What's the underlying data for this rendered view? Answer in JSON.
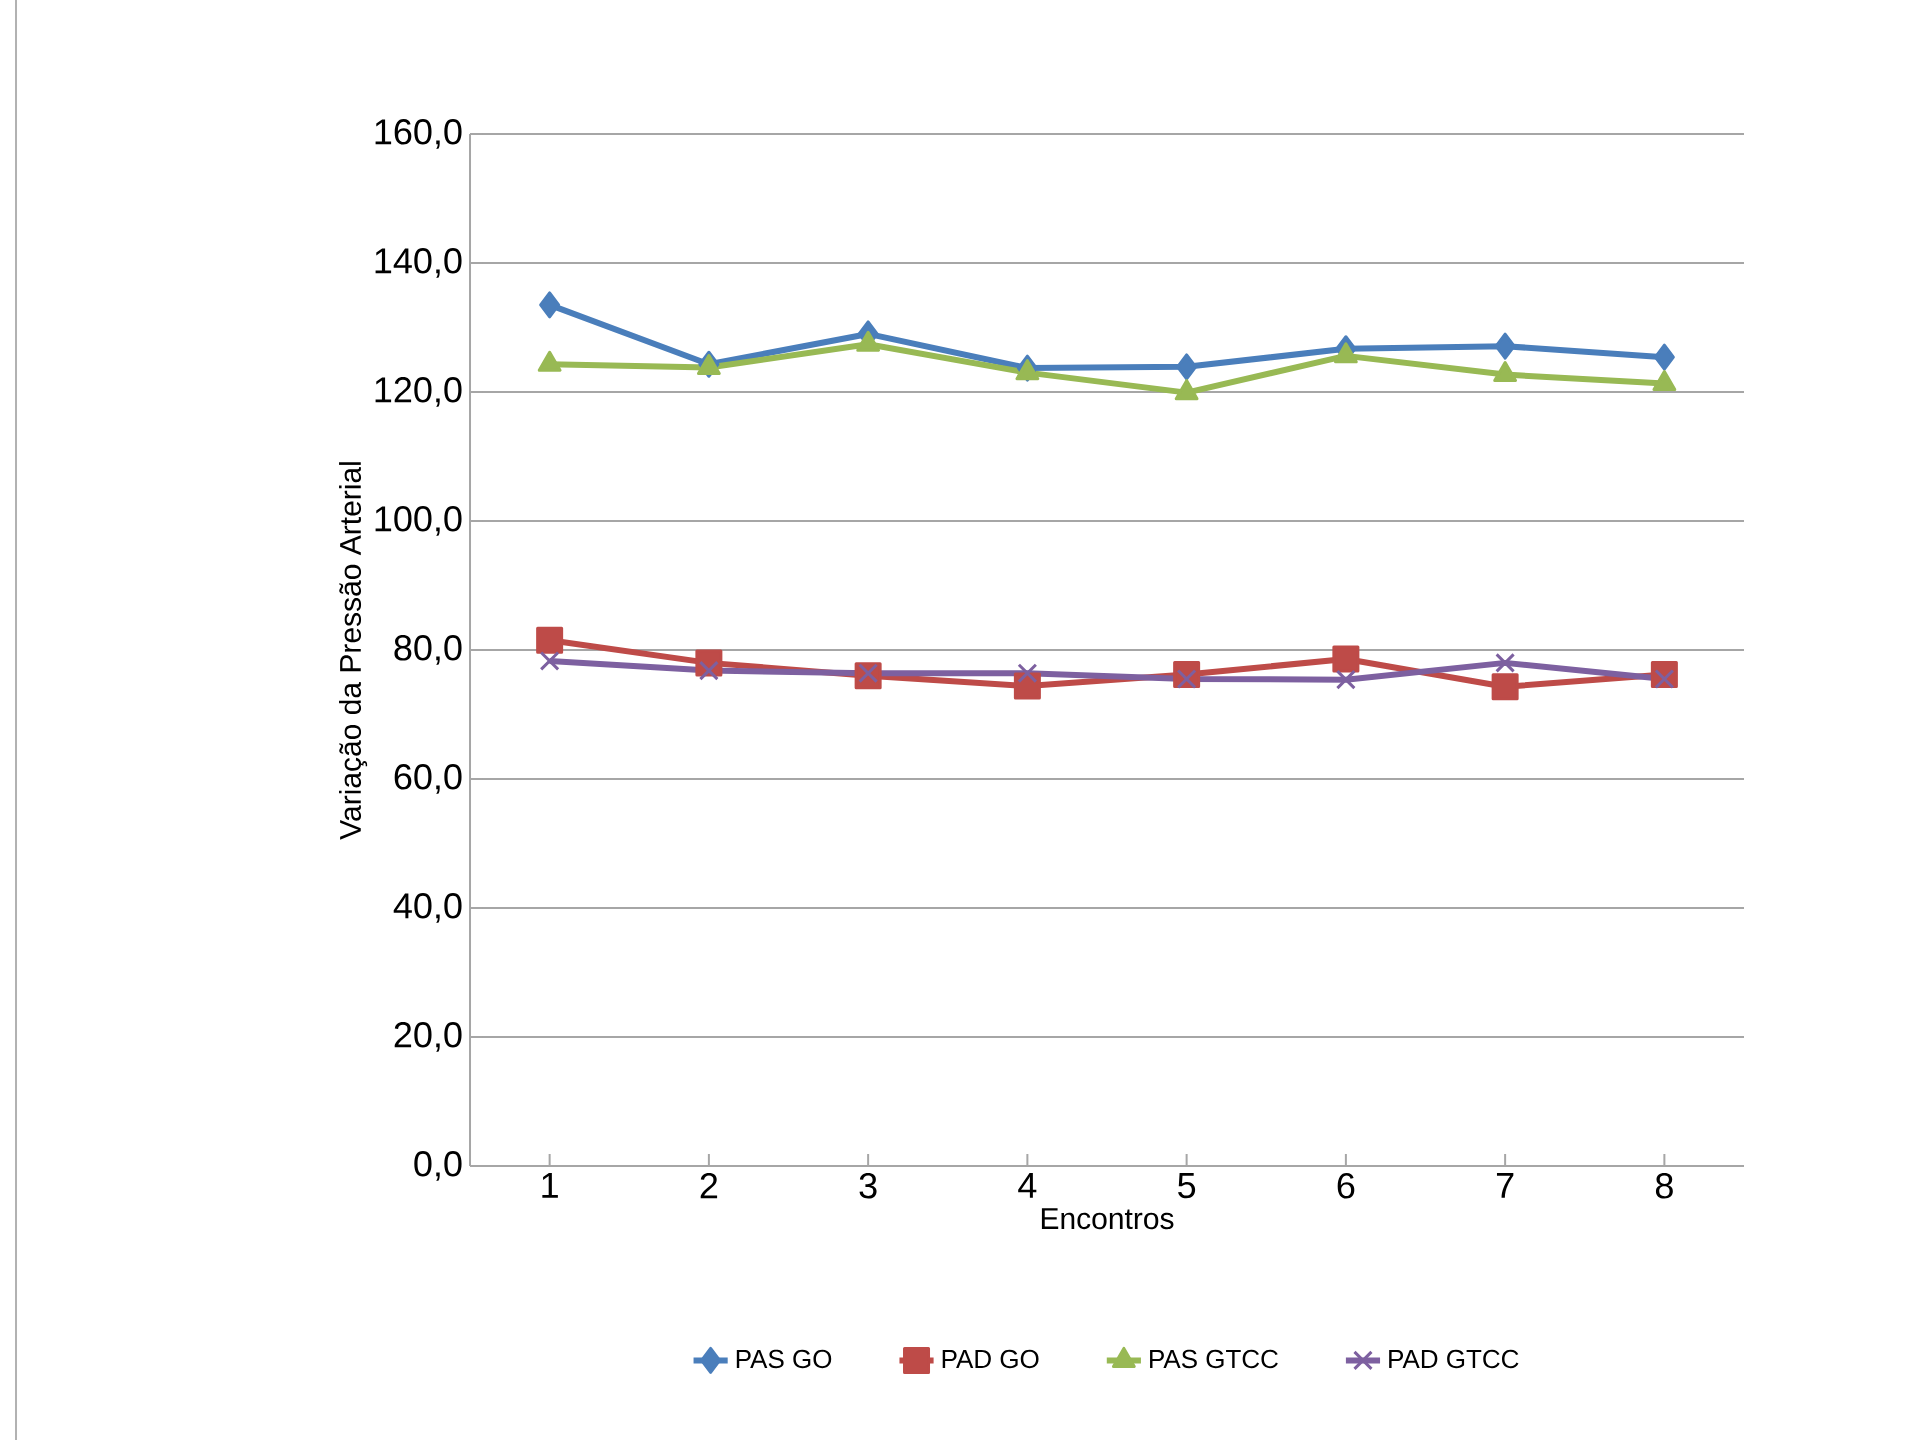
{
  "chart_data": {
    "type": "line",
    "xlabel": "Encontros",
    "ylabel": "Variação da Pressão Arterial",
    "categories": [
      "1",
      "2",
      "3",
      "4",
      "5",
      "6",
      "7",
      "8"
    ],
    "series": [
      {
        "name": "PAS GO",
        "color": "#4a7ebb",
        "marker": "diamond",
        "values": [
          133.5,
          124.3,
          129.0,
          123.7,
          123.9,
          126.7,
          127.1,
          125.4
        ]
      },
      {
        "name": "PAD GO",
        "color": "#be4b48",
        "marker": "square",
        "values": [
          81.5,
          78.0,
          76.0,
          74.4,
          76.2,
          78.6,
          74.3,
          76.2
        ]
      },
      {
        "name": "PAS GTCC",
        "color": "#98b954",
        "marker": "triangle",
        "values": [
          124.3,
          123.8,
          127.4,
          123.0,
          119.9,
          125.6,
          122.7,
          121.3
        ]
      },
      {
        "name": "PAD GTCC",
        "color": "#7d60a0",
        "marker": "cross",
        "values": [
          78.3,
          76.8,
          76.4,
          76.4,
          75.5,
          75.4,
          78.0,
          75.5
        ]
      }
    ],
    "ylim": [
      0,
      160
    ],
    "yticks": [
      {
        "value": 0,
        "label": "0,0"
      },
      {
        "value": 20,
        "label": "20,0"
      },
      {
        "value": 40,
        "label": "40,0"
      },
      {
        "value": 60,
        "label": "60,0"
      },
      {
        "value": 80,
        "label": "80,0"
      },
      {
        "value": 100,
        "label": "100,0"
      },
      {
        "value": 120,
        "label": "120,0"
      },
      {
        "value": 140,
        "label": "140,0"
      },
      {
        "value": 160,
        "label": "160,0"
      }
    ],
    "grid": "y",
    "legend": "bottom",
    "line_style": "solid"
  }
}
